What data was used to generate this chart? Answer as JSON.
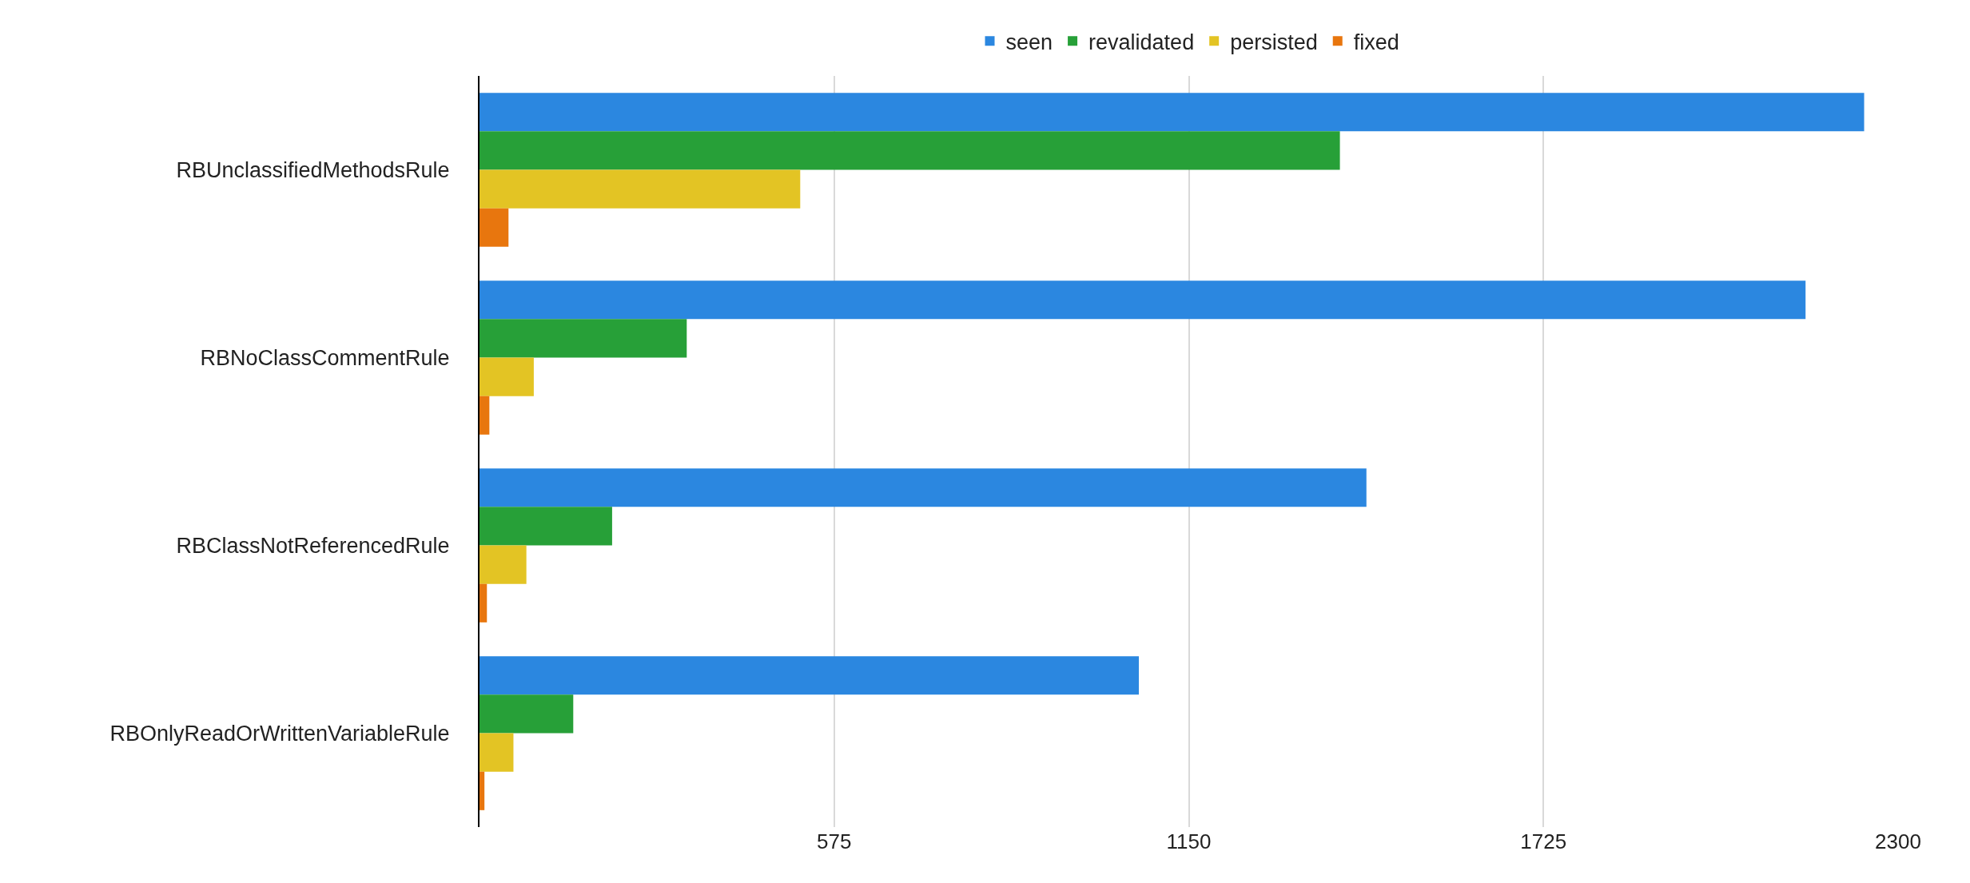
{
  "chart_data": {
    "type": "bar",
    "orientation": "horizontal",
    "categories": [
      "RBUnclassifiedMethodsRule",
      "RBNoClassCommentRule",
      "RBClassNotReferencedRule",
      "RBOnlyReadOrWrittenVariableRule"
    ],
    "series": [
      {
        "name": "seen",
        "color": "#2b87e0",
        "values": [
          2245,
          2150,
          1438,
          1069
        ]
      },
      {
        "name": "revalidated",
        "color": "#27a038",
        "values": [
          1395,
          336,
          215,
          152
        ]
      },
      {
        "name": "persisted",
        "color": "#e3c424",
        "values": [
          520,
          88,
          76,
          55
        ]
      },
      {
        "name": "fixed",
        "color": "#e8760e",
        "values": [
          47,
          16,
          12,
          8
        ]
      }
    ],
    "xlim": [
      0,
      2300
    ],
    "xticks": [
      575,
      1150,
      1725,
      2300
    ],
    "grid": "x",
    "legend": "top"
  }
}
